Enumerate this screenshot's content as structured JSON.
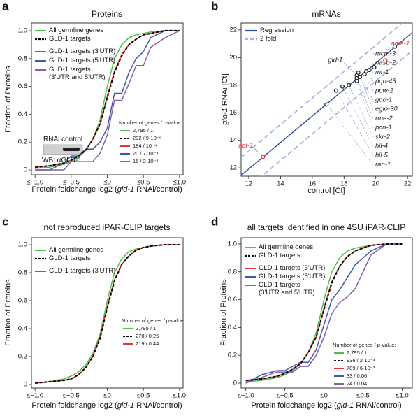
{
  "chart_data": [
    {
      "type": "line",
      "panel": "a",
      "title": "Proteins",
      "xlabel": [
        "Protein foldchange log2 (",
        "gld-1",
        " RNAi/control)"
      ],
      "ylabel": "Fraction of Proteins",
      "x": [
        -1,
        -0.8,
        -0.6,
        -0.5,
        -0.4,
        -0.3,
        -0.2,
        -0.1,
        0,
        0.1,
        0.2,
        0.3,
        0.4,
        0.5,
        0.6,
        0.8,
        1
      ],
      "xlim": [
        -1.05,
        1.05
      ],
      "ylim": [
        -0.035,
        1.055
      ],
      "xticks": [
        {
          "value": -1,
          "label": "≤−1.0"
        },
        {
          "value": -0.5,
          "label": "≤−0.5"
        },
        {
          "value": 0,
          "label": "≤0"
        },
        {
          "value": 0.5,
          "label": "≤0.5"
        },
        {
          "value": 1,
          "label": "≤1.0"
        }
      ],
      "yticks": [
        0,
        0.2,
        0.4,
        0.6,
        0.8,
        {
          "value": 1,
          "label": "1.0"
        }
      ],
      "stats_title": "Number of genes / p-value:",
      "series": [
        {
          "name": "All germline genes",
          "color": "#4dbf4a",
          "stats": "2,795 / 1",
          "values": [
            0.01,
            0.02,
            0.04,
            0.06,
            0.09,
            0.14,
            0.22,
            0.36,
            0.6,
            0.8,
            0.9,
            0.95,
            0.97,
            0.98,
            0.99,
            1,
            1
          ]
        },
        {
          "name": "GLD-1 targets",
          "color": "#000000",
          "dashed": true,
          "stats": "202 / 9·10⁻⁵",
          "values": [
            0.02,
            0.03,
            0.05,
            0.07,
            0.1,
            0.14,
            0.22,
            0.33,
            0.52,
            0.7,
            0.82,
            0.9,
            0.94,
            0.97,
            0.98,
            1,
            1
          ]
        },
        {
          "name": "GLD-1 targets (3'UTR)",
          "color": "#e8333a",
          "stats": "184 / 10⁻⁴",
          "values": [
            0.02,
            0.03,
            0.05,
            0.07,
            0.1,
            0.14,
            0.22,
            0.33,
            0.53,
            0.71,
            0.83,
            0.9,
            0.94,
            0.97,
            0.98,
            1,
            1
          ]
        },
        {
          "name": "GLD-1 targets (5'UTR)",
          "color": "#3c5ba8",
          "stats": "20 / 7·10⁻⁴",
          "values": [
            0,
            0,
            0.05,
            0.1,
            0.1,
            0.15,
            0.15,
            0.2,
            0.3,
            0.55,
            0.55,
            0.7,
            0.8,
            0.85,
            0.95,
            1,
            1
          ]
        },
        {
          "name": "GLD-1 targets\n(3'UTR and 5'UTR)",
          "color": "#8a5bb5",
          "stats": "16 / 2·10⁻³",
          "values": [
            0,
            0,
            0,
            0.06,
            0.06,
            0.06,
            0.06,
            0.12,
            0.25,
            0.5,
            0.5,
            0.62,
            0.75,
            0.75,
            0.88,
            0.95,
            1
          ]
        }
      ],
      "inset": {
        "title": "RNAi control",
        "label": "WB: αGLD-1"
      }
    },
    {
      "type": "scatter",
      "panel": "b",
      "title": "mRNAs",
      "xlabel": "control [Ct]",
      "ylabel": [
        "gld-1",
        " RNAi  [Ct]"
      ],
      "xlim": [
        11.52,
        22.3
      ],
      "ylim": [
        11.4,
        22.5
      ],
      "xticks": [
        12,
        14,
        16,
        18,
        20,
        22
      ],
      "yticks": [
        12,
        14,
        16,
        18,
        20,
        22
      ],
      "regression": {
        "name": "Regression",
        "color": "#2c4f9e",
        "x": [
          11.5,
          22.3
        ],
        "y": [
          11.44,
          21.81
        ]
      },
      "fold": {
        "name": "2 fold",
        "color": "#a9b3e0",
        "offset": 1.3
      },
      "x": [
        12.9,
        18.8,
        20.6,
        21.2,
        19.9,
        19.6,
        19.4,
        19.3,
        19.0,
        18.9,
        18.8,
        18.8,
        18.3,
        17.9,
        17.5,
        16.9
      ],
      "y": [
        12.8,
        18.7,
        19.8,
        20.8,
        19.3,
        19.1,
        19.0,
        18.8,
        18.6,
        18.9,
        18.5,
        18.3,
        18.0,
        17.9,
        17.6,
        16.6
      ],
      "names": [
        "act-1",
        "gld-1",
        "ama-1",
        "mcm-3",
        "nasp-2",
        "mr-1",
        "pqn-45",
        "ppw-2",
        "gpb-1",
        "eglo-30",
        "rme-2",
        "pcn-1",
        "skr-2",
        "hil-4",
        "hil-5",
        "ran-1"
      ],
      "colors": [
        "#e8333a",
        "#222222",
        "#e8333a",
        "#222222",
        "#222222",
        "#222222",
        "#222222",
        "#222222",
        "#222222",
        "#222222",
        "#222222",
        "#222222",
        "#222222",
        "#222222",
        "#222222",
        "#222222"
      ]
    },
    {
      "type": "line",
      "panel": "c",
      "title": "not reproduced iPAR-CLIP targets",
      "xlabel": [
        "Protein foldchange log2 (",
        "gld-1",
        " RNAi/control)"
      ],
      "ylabel": "Fraction of Proteins",
      "x": [
        -1,
        -0.8,
        -0.6,
        -0.5,
        -0.4,
        -0.3,
        -0.2,
        -0.1,
        0,
        0.1,
        0.2,
        0.3,
        0.4,
        0.5,
        0.6,
        0.8,
        1
      ],
      "xlim": [
        -1.05,
        1.05
      ],
      "ylim": [
        -0.025,
        1.05
      ],
      "xticks": [
        {
          "value": -1,
          "label": "≤−1.0"
        },
        {
          "value": -0.5,
          "label": "≤−0.5"
        },
        {
          "value": 0,
          "label": "≤0"
        },
        {
          "value": 0.5,
          "label": "≤0.5"
        },
        {
          "value": 1,
          "label": "≤1.0"
        }
      ],
      "yticks": [
        0,
        0.2,
        0.4,
        0.6,
        0.8,
        {
          "value": 1,
          "label": "1.0"
        }
      ],
      "stats_title": "Number of genes / p-value:",
      "series": [
        {
          "name": "All germline genes",
          "color": "#4dbf4a",
          "stats": "2,795 / 1",
          "values": [
            0.01,
            0.02,
            0.04,
            0.06,
            0.09,
            0.14,
            0.22,
            0.36,
            0.6,
            0.8,
            0.9,
            0.95,
            0.97,
            0.98,
            0.99,
            1,
            1
          ]
        },
        {
          "name": "GLD-1 targets",
          "color": "#000000",
          "dashed": true,
          "stats": "270 / 0.25",
          "values": [
            0.01,
            0.02,
            0.03,
            0.04,
            0.07,
            0.12,
            0.2,
            0.33,
            0.55,
            0.74,
            0.86,
            0.92,
            0.96,
            0.98,
            0.99,
            1,
            1
          ]
        },
        {
          "name": "GLD-1 targets (3'UTR)",
          "color": "#e8333a",
          "stats": "219 / 0.44",
          "values": [
            0.01,
            0.02,
            0.03,
            0.04,
            0.07,
            0.12,
            0.2,
            0.34,
            0.56,
            0.75,
            0.86,
            0.92,
            0.96,
            0.98,
            0.99,
            1,
            1
          ]
        }
      ]
    },
    {
      "type": "line",
      "panel": "d",
      "title": "all targets identified in one 4SU iPAR-CLIP",
      "xlabel": [
        "Protein foldchange log2 (",
        "gld-1",
        " RNAi/control)"
      ],
      "ylabel": "Fraction of Proteins",
      "x": [
        -1,
        -0.8,
        -0.6,
        -0.5,
        -0.4,
        -0.3,
        -0.2,
        -0.1,
        0,
        0.1,
        0.2,
        0.3,
        0.4,
        0.5,
        0.6,
        0.8,
        1
      ],
      "xlim": [
        -1.06,
        1.13
      ],
      "ylim": [
        -0.035,
        1.045
      ],
      "xticks": [
        {
          "value": -1,
          "label": "≤−1.0"
        },
        {
          "value": -0.5,
          "label": "≤−0.5"
        },
        {
          "value": 0,
          "label": "≤0"
        },
        {
          "value": 0.5,
          "label": "≤0.5"
        },
        {
          "value": 1,
          "label": "≤1.0"
        }
      ],
      "yticks": [
        0,
        0.2,
        0.4,
        0.6,
        0.8,
        {
          "value": 1,
          "label": "1.0"
        }
      ],
      "stats_title": "Number of genes / p-value:",
      "series": [
        {
          "name": "All germline genes",
          "color": "#4dbf4a",
          "stats": "2,795 / 1",
          "values": [
            0.01,
            0.02,
            0.04,
            0.06,
            0.09,
            0.14,
            0.22,
            0.36,
            0.6,
            0.8,
            0.9,
            0.95,
            0.97,
            0.98,
            0.99,
            1,
            1
          ]
        },
        {
          "name": "GLD-1 targets",
          "color": "#000000",
          "dashed": true,
          "stats": "936 / 2·10⁻³",
          "values": [
            0.02,
            0.03,
            0.05,
            0.07,
            0.1,
            0.14,
            0.22,
            0.33,
            0.53,
            0.72,
            0.84,
            0.91,
            0.95,
            0.97,
            0.99,
            1,
            1
          ]
        },
        {
          "name": "GLD-1 targets (3'UTR)",
          "color": "#e8333a",
          "stats": "789 / 6·10⁻³",
          "values": [
            0.02,
            0.03,
            0.05,
            0.07,
            0.1,
            0.14,
            0.22,
            0.33,
            0.54,
            0.73,
            0.84,
            0.91,
            0.95,
            0.97,
            0.99,
            1,
            1
          ]
        },
        {
          "name": "GLD-1 targets (5'UTR)",
          "color": "#3c5ba8",
          "stats": "33 / 0.06",
          "values": [
            0,
            0.06,
            0.09,
            0.09,
            0.12,
            0.15,
            0.15,
            0.24,
            0.42,
            0.6,
            0.67,
            0.76,
            0.85,
            0.9,
            0.95,
            1,
            1
          ]
        },
        {
          "name": "GLD-1 targets\n(3'UTR and 5'UTR)",
          "color": "#8a5bb5",
          "stats": "24 / 0.04",
          "values": [
            0,
            0.04,
            0.08,
            0.08,
            0.08,
            0.12,
            0.12,
            0.2,
            0.33,
            0.5,
            0.58,
            0.62,
            0.68,
            0.8,
            0.92,
            1,
            1
          ]
        }
      ]
    }
  ]
}
